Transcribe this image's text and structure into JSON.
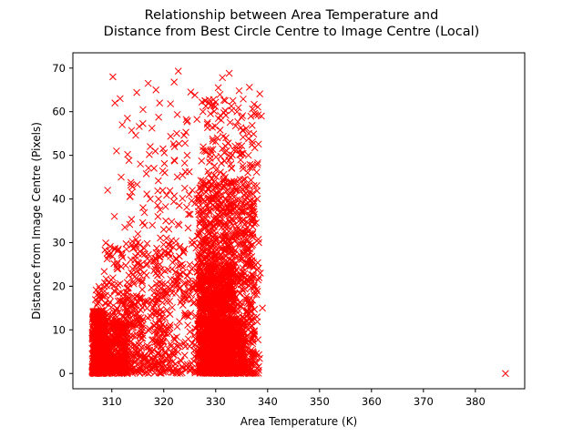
{
  "chart_data": {
    "type": "scatter",
    "title_line1": "Relationship between Area Temperature and",
    "title_line2": "Distance from Best Circle Centre to Image Centre (Local)",
    "xlabel": "Area Temperature (K)",
    "ylabel": "Distance from Image Centre (Pixels)",
    "xlim": [
      302.5,
      389.5
    ],
    "ylim": [
      -3.5,
      73.5
    ],
    "xticks": [
      310,
      320,
      330,
      340,
      350,
      360,
      370,
      380
    ],
    "yticks": [
      0,
      10,
      20,
      30,
      40,
      50,
      60,
      70
    ],
    "marker": "x",
    "color": "#ff0000",
    "grid": false,
    "series": [
      {
        "values": [
          [
            310.2,
            68.0
          ],
          [
            317.0,
            66.5
          ],
          [
            322.8,
            69.3
          ],
          [
            331.3,
            67.8
          ],
          [
            332.6,
            68.8
          ],
          [
            311.6,
            63.0
          ],
          [
            314.8,
            64.4
          ],
          [
            318.5,
            65.0
          ],
          [
            322.0,
            66.8
          ],
          [
            325.2,
            64.5
          ],
          [
            330.5,
            65.5
          ],
          [
            334.5,
            64.8
          ],
          [
            336.5,
            65.6
          ],
          [
            310.6,
            62.0
          ],
          [
            313.0,
            58.5
          ],
          [
            312.0,
            57.0
          ],
          [
            316.0,
            60.5
          ],
          [
            319.2,
            62.0
          ],
          [
            321.3,
            61.8
          ],
          [
            326.0,
            63.8
          ],
          [
            328.0,
            62.5
          ],
          [
            310.9,
            51.0
          ],
          [
            309.2,
            42.0
          ],
          [
            311.8,
            45.0
          ],
          [
            315.5,
            48.0
          ],
          [
            317.4,
            52.0
          ],
          [
            320.2,
            46.0
          ],
          [
            322.5,
            55.0
          ],
          [
            324.5,
            50.0
          ],
          [
            313.5,
            40.5
          ],
          [
            316.0,
            38.0
          ],
          [
            319.0,
            40.0
          ],
          [
            323.0,
            38.5
          ],
          [
            325.5,
            42.0
          ],
          [
            310.5,
            36.0
          ],
          [
            312.5,
            33.5
          ],
          [
            315.0,
            30.0
          ],
          [
            317.8,
            34.0
          ],
          [
            320.0,
            33.0
          ],
          [
            321.5,
            30.5
          ],
          [
            324.0,
            28.5
          ],
          [
            326.8,
            32.0
          ],
          [
            311.0,
            25.0
          ],
          [
            314.0,
            24.0
          ],
          [
            318.5,
            23.0
          ],
          [
            322.0,
            21.5
          ],
          [
            325.0,
            25.0
          ],
          [
            327.5,
            20.0
          ],
          [
            338.3,
            30.0
          ],
          [
            338.6,
            23.0
          ],
          [
            339.0,
            15.0
          ],
          [
            338.0,
            40.0
          ],
          [
            338.8,
            59.0
          ],
          [
            385.8,
            0.0
          ]
        ],
        "clusters": [
          {
            "xmin": 306.2,
            "xmax": 308.6,
            "ymin": 0.0,
            "ymax": 14.5,
            "count": 480
          },
          {
            "xmin": 306.8,
            "xmax": 308.8,
            "ymin": 0.0,
            "ymax": 21.0,
            "count": 80
          },
          {
            "xmin": 308.0,
            "xmax": 313.0,
            "ymin": 0.0,
            "ymax": 12.0,
            "count": 380
          },
          {
            "xmin": 308.5,
            "xmax": 316.0,
            "ymin": 0.0,
            "ymax": 30.0,
            "count": 220
          },
          {
            "xmin": 312.0,
            "xmax": 320.0,
            "ymin": 0.0,
            "ymax": 18.0,
            "count": 200
          },
          {
            "xmin": 318.0,
            "xmax": 327.0,
            "ymin": 0.0,
            "ymax": 30.0,
            "count": 220
          },
          {
            "xmin": 313.0,
            "xmax": 327.0,
            "ymin": 18.0,
            "ymax": 60.0,
            "count": 160
          },
          {
            "xmin": 326.8,
            "xmax": 333.5,
            "ymin": 0.0,
            "ymax": 25.0,
            "count": 900
          },
          {
            "xmin": 326.5,
            "xmax": 337.5,
            "ymin": 0.0,
            "ymax": 45.0,
            "count": 900
          },
          {
            "xmin": 327.0,
            "xmax": 338.5,
            "ymin": 0.0,
            "ymax": 65.0,
            "count": 500
          },
          {
            "xmin": 330.0,
            "xmax": 335.5,
            "ymin": 0.0,
            "ymax": 12.0,
            "count": 350
          }
        ]
      }
    ]
  }
}
